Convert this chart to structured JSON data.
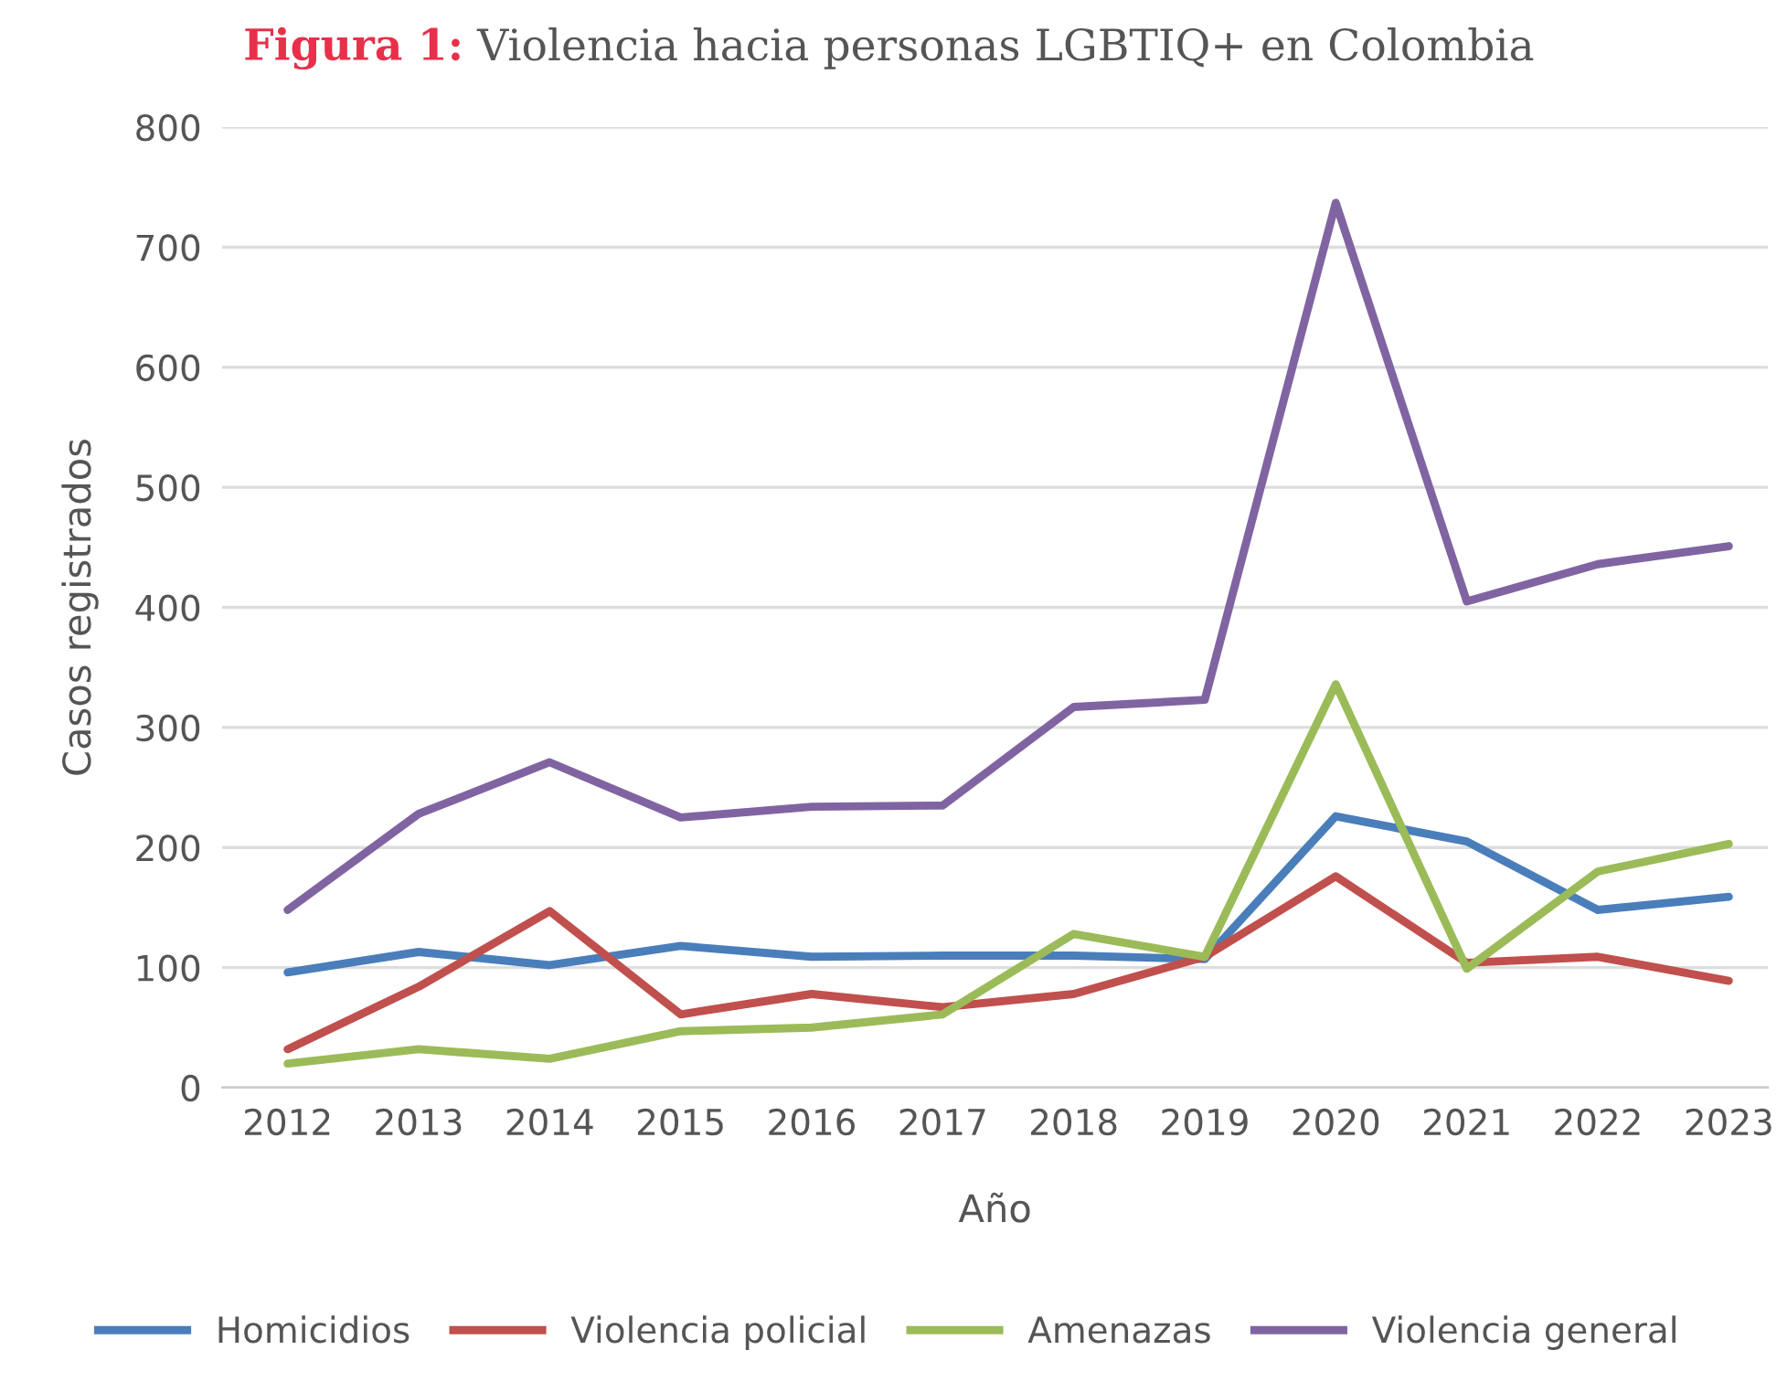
{
  "chart_data": {
    "type": "line",
    "title": "Figura 1: Violencia hacia personas LGBTIQ+ en Colombia",
    "xlabel": "Año",
    "ylabel": "Casos registrados",
    "x": [
      2012,
      2013,
      2014,
      2015,
      2016,
      2017,
      2018,
      2019,
      2020,
      2021,
      2022,
      2023
    ],
    "xlim": [
      2011.5,
      2023.3
    ],
    "xticks": [
      2012,
      2013,
      2014,
      2015,
      2016,
      2017,
      2018,
      2019,
      2020,
      2021,
      2022,
      2023
    ],
    "ylim": [
      0,
      800
    ],
    "yticks": [
      0,
      100,
      200,
      300,
      400,
      500,
      600,
      700,
      800
    ],
    "grid": "y",
    "legend": "bottom",
    "marker": "none",
    "line_style": "solid",
    "series": [
      {
        "name": "Homicidios",
        "color": "#4a7ebb",
        "values": [
          96,
          113,
          102,
          118,
          109,
          110,
          110,
          107,
          226,
          205,
          148,
          159
        ]
      },
      {
        "name": "Violencia policial",
        "color": "#c0504d",
        "values": [
          32,
          84,
          147,
          61,
          78,
          67,
          78,
          109,
          176,
          104,
          109,
          89
        ]
      },
      {
        "name": "Amenazas",
        "color": "#9bbb59",
        "values": [
          20,
          32,
          24,
          47,
          50,
          61,
          128,
          109,
          336,
          99,
          180,
          203
        ]
      },
      {
        "name": "Violencia general",
        "color": "#8064a2",
        "values": [
          148,
          228,
          271,
          225,
          234,
          235,
          317,
          323,
          737,
          405,
          436,
          451
        ]
      }
    ]
  }
}
